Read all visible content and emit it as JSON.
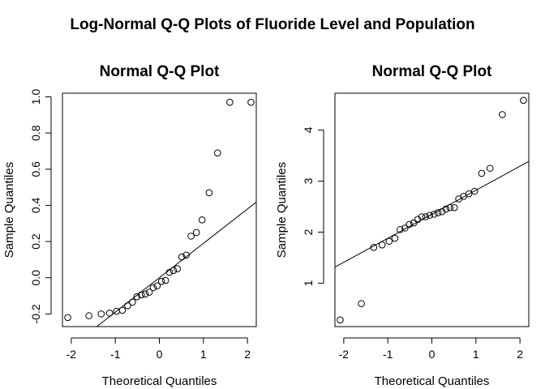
{
  "title": "Log-Normal Q-Q Plots of Fluoride Level and Population",
  "chart_data": [
    {
      "type": "scatter",
      "title": "Normal Q-Q Plot",
      "xlabel": "Theoretical Quantiles",
      "ylabel": "Sample Quantiles",
      "xlim": [
        -2.2,
        2.2
      ],
      "ylim": [
        -0.27,
        1.02
      ],
      "xticks": [
        -2,
        -1,
        0,
        1,
        2
      ],
      "yticks": [
        -0.2,
        0.0,
        0.2,
        0.4,
        0.6,
        0.8,
        1.0
      ],
      "ytick_labels": [
        "-0.2",
        "0.0",
        "0.2",
        "0.4",
        "0.6",
        "0.8",
        "1.0"
      ],
      "x": [
        -2.08,
        -1.6,
        -1.32,
        -1.13,
        -0.97,
        -0.84,
        -0.72,
        -0.61,
        -0.51,
        -0.41,
        -0.32,
        -0.23,
        -0.14,
        -0.05,
        0.05,
        0.14,
        0.23,
        0.32,
        0.41,
        0.51,
        0.61,
        0.72,
        0.84,
        0.97,
        1.13,
        1.32,
        1.6,
        2.08
      ],
      "y": [
        -0.22,
        -0.21,
        -0.2,
        -0.195,
        -0.185,
        -0.18,
        -0.155,
        -0.135,
        -0.105,
        -0.095,
        -0.09,
        -0.08,
        -0.055,
        -0.045,
        -0.02,
        -0.015,
        0.03,
        0.04,
        0.05,
        0.115,
        0.125,
        0.23,
        0.25,
        0.32,
        0.47,
        0.69,
        0.97,
        0.97
      ],
      "reference_line": {
        "intercept": 0.0,
        "slope": 0.19
      }
    },
    {
      "type": "scatter",
      "title": "Normal Q-Q Plot",
      "xlabel": "Theoretical Quantiles",
      "ylabel": "Sample Quantiles",
      "xlim": [
        -2.2,
        2.2
      ],
      "ylim": [
        0.15,
        4.72
      ],
      "xticks": [
        -2,
        -1,
        0,
        1,
        2
      ],
      "yticks": [
        1,
        2,
        3,
        4
      ],
      "ytick_labels": [
        "1",
        "2",
        "3",
        "4"
      ],
      "x": [
        -2.08,
        -1.6,
        -1.32,
        -1.13,
        -0.97,
        -0.84,
        -0.72,
        -0.61,
        -0.51,
        -0.41,
        -0.32,
        -0.23,
        -0.14,
        -0.05,
        0.05,
        0.14,
        0.23,
        0.32,
        0.41,
        0.51,
        0.61,
        0.72,
        0.84,
        0.97,
        1.13,
        1.32,
        1.6,
        2.08
      ],
      "y": [
        0.28,
        0.6,
        1.7,
        1.75,
        1.82,
        1.88,
        2.05,
        2.08,
        2.15,
        2.18,
        2.25,
        2.3,
        2.3,
        2.33,
        2.35,
        2.38,
        2.4,
        2.45,
        2.48,
        2.48,
        2.65,
        2.7,
        2.75,
        2.8,
        3.15,
        3.25,
        4.3,
        4.58
      ],
      "reference_line": {
        "intercept": 2.35,
        "slope": 0.47
      }
    }
  ]
}
